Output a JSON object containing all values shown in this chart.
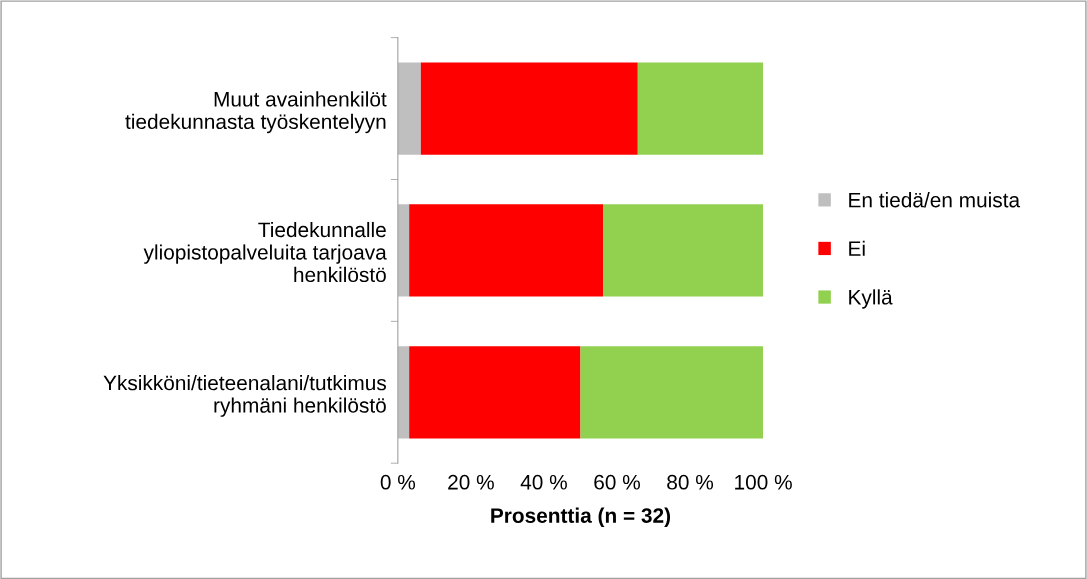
{
  "chart_data": {
    "type": "bar",
    "orientation": "horizontal",
    "stacked": true,
    "xlabel": "Prosenttia (n = 32)",
    "categories": [
      "Muut avainhenkilöt\ntiedekunnasta työskentelyyn",
      "Tiedekunnalle\nyliopistopalveluita tarjoava\nhenkilöstö",
      "Yksikköni/tieteenalani/tutkimus\nryhmäni henkilöstö"
    ],
    "series": [
      {
        "name": "En tiedä/en muista",
        "color": "#bfbfbf",
        "values": [
          6.3,
          3.1,
          3.1
        ]
      },
      {
        "name": "Ei",
        "color": "#ff0000",
        "values": [
          59.4,
          53.1,
          46.9
        ]
      },
      {
        "name": "Kyllä",
        "color": "#92d050",
        "values": [
          34.4,
          43.8,
          50.0
        ]
      }
    ],
    "xlim": [
      0,
      100
    ],
    "xticks": [
      {
        "value": 0,
        "label": "0 %"
      },
      {
        "value": 20,
        "label": "20 %"
      },
      {
        "value": 40,
        "label": "40 %"
      },
      {
        "value": 60,
        "label": "60 %"
      },
      {
        "value": 80,
        "label": "80 %"
      },
      {
        "value": 100,
        "label": "100 %"
      }
    ],
    "legend": "right",
    "grid": false
  }
}
